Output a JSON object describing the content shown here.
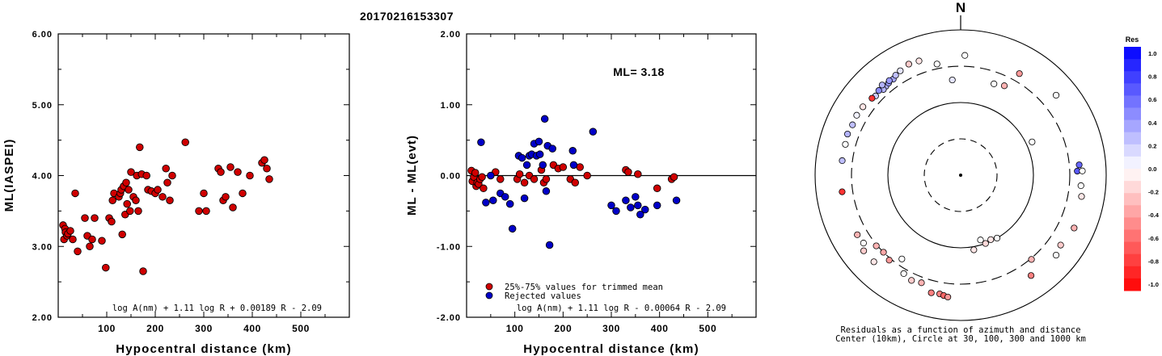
{
  "title": "20170216153307",
  "chart_data": [
    {
      "type": "scatter",
      "ylabel": "ML(IASPEI)",
      "xlabel": "Hypocentral distance (km)",
      "xlim": [
        0,
        600
      ],
      "ylim": [
        2.0,
        6.0
      ],
      "x_ticks": [
        "100",
        "200",
        "300",
        "400",
        "500"
      ],
      "y_ticks": [
        "2.00",
        "3.00",
        "4.00",
        "5.00",
        "6.00"
      ],
      "formula": "log A(nm) + 1.11 log R + 0.00189 R - 2.09",
      "series": [
        {
          "color": "#d00000",
          "points": [
            [
              10,
              3.3
            ],
            [
              12,
              3.1
            ],
            [
              14,
              3.25
            ],
            [
              15,
              3.2
            ],
            [
              18,
              3.15
            ],
            [
              20,
              3.18
            ],
            [
              25,
              3.22
            ],
            [
              30,
              3.1
            ],
            [
              35,
              3.75
            ],
            [
              40,
              2.93
            ],
            [
              55,
              3.4
            ],
            [
              60,
              3.15
            ],
            [
              65,
              3.0
            ],
            [
              70,
              3.1
            ],
            [
              75,
              3.4
            ],
            [
              90,
              3.08
            ],
            [
              98,
              2.7
            ],
            [
              105,
              3.4
            ],
            [
              110,
              3.35
            ],
            [
              112,
              3.65
            ],
            [
              115,
              3.75
            ],
            [
              125,
              3.7
            ],
            [
              128,
              3.75
            ],
            [
              130,
              3.8
            ],
            [
              132,
              3.17
            ],
            [
              135,
              3.85
            ],
            [
              138,
              3.45
            ],
            [
              140,
              3.9
            ],
            [
              142,
              3.6
            ],
            [
              145,
              3.8
            ],
            [
              148,
              3.5
            ],
            [
              150,
              4.05
            ],
            [
              155,
              3.7
            ],
            [
              160,
              3.65
            ],
            [
              162,
              4.0
            ],
            [
              165,
              3.5
            ],
            [
              168,
              4.4
            ],
            [
              172,
              4.02
            ],
            [
              175,
              2.65
            ],
            [
              182,
              4.0
            ],
            [
              185,
              3.8
            ],
            [
              192,
              3.78
            ],
            [
              200,
              3.75
            ],
            [
              205,
              3.8
            ],
            [
              215,
              3.7
            ],
            [
              222,
              4.1
            ],
            [
              225,
              3.9
            ],
            [
              230,
              3.65
            ],
            [
              235,
              4.0
            ],
            [
              262,
              4.47
            ],
            [
              290,
              3.5
            ],
            [
              300,
              3.75
            ],
            [
              305,
              3.5
            ],
            [
              330,
              4.1
            ],
            [
              335,
              4.05
            ],
            [
              340,
              3.65
            ],
            [
              345,
              3.7
            ],
            [
              355,
              4.12
            ],
            [
              360,
              3.55
            ],
            [
              370,
              4.05
            ],
            [
              380,
              3.75
            ],
            [
              395,
              4.0
            ],
            [
              420,
              4.18
            ],
            [
              425,
              4.22
            ],
            [
              430,
              4.1
            ],
            [
              435,
              3.95
            ]
          ]
        }
      ]
    },
    {
      "type": "scatter",
      "ylabel": "ML - ML(evt)",
      "xlabel": "Hypocentral distance (km)",
      "xlim": [
        0,
        600
      ],
      "ylim": [
        -2.0,
        2.0
      ],
      "x_ticks": [
        "100",
        "200",
        "300",
        "400",
        "500"
      ],
      "y_ticks": [
        "-2.00",
        "-1.00",
        "0.00",
        "1.00",
        "2.00"
      ],
      "annotation": "ML= 3.18",
      "reference_line": 0.0,
      "formula": "log A(nm) + 1.11 log R - 0.00064 R - 2.09",
      "series": [
        {
          "name": "25%-75% values for trimmed mean",
          "color": "#d00000",
          "points": [
            [
              10,
              0.07
            ],
            [
              12,
              -0.08
            ],
            [
              15,
              -0.02
            ],
            [
              18,
              0.04
            ],
            [
              20,
              -0.15
            ],
            [
              22,
              -0.1
            ],
            [
              25,
              -0.12
            ],
            [
              28,
              -0.05
            ],
            [
              32,
              -0.02
            ],
            [
              35,
              -0.18
            ],
            [
              60,
              0.05
            ],
            [
              70,
              -0.05
            ],
            [
              105,
              -0.05
            ],
            [
              110,
              0.02
            ],
            [
              120,
              -0.1
            ],
            [
              130,
              0.0
            ],
            [
              140,
              -0.05
            ],
            [
              155,
              0.08
            ],
            [
              160,
              -0.1
            ],
            [
              165,
              -0.05
            ],
            [
              180,
              0.15
            ],
            [
              190,
              0.1
            ],
            [
              200,
              0.12
            ],
            [
              215,
              -0.05
            ],
            [
              225,
              -0.1
            ],
            [
              235,
              0.12
            ],
            [
              250,
              0.0
            ],
            [
              330,
              0.08
            ],
            [
              335,
              0.05
            ],
            [
              355,
              0.02
            ],
            [
              395,
              -0.18
            ],
            [
              425,
              -0.05
            ],
            [
              430,
              -0.02
            ]
          ]
        },
        {
          "name": "Rejected values",
          "color": "#0000c8",
          "points": [
            [
              30,
              0.47
            ],
            [
              40,
              -0.38
            ],
            [
              50,
              0.0
            ],
            [
              55,
              -0.35
            ],
            [
              70,
              -0.25
            ],
            [
              80,
              -0.3
            ],
            [
              90,
              -0.4
            ],
            [
              95,
              -0.75
            ],
            [
              108,
              0.28
            ],
            [
              115,
              0.25
            ],
            [
              120,
              -0.32
            ],
            [
              125,
              0.15
            ],
            [
              130,
              0.28
            ],
            [
              135,
              0.3
            ],
            [
              140,
              0.45
            ],
            [
              145,
              0.28
            ],
            [
              150,
              0.48
            ],
            [
              152,
              0.3
            ],
            [
              158,
              0.15
            ],
            [
              162,
              0.8
            ],
            [
              165,
              -0.22
            ],
            [
              168,
              0.42
            ],
            [
              172,
              -0.98
            ],
            [
              178,
              0.38
            ],
            [
              220,
              0.35
            ],
            [
              222,
              0.15
            ],
            [
              262,
              0.62
            ],
            [
              300,
              -0.42
            ],
            [
              310,
              -0.5
            ],
            [
              330,
              -0.35
            ],
            [
              340,
              -0.45
            ],
            [
              350,
              -0.3
            ],
            [
              355,
              -0.42
            ],
            [
              360,
              -0.55
            ],
            [
              370,
              -0.48
            ],
            [
              395,
              -0.42
            ],
            [
              435,
              -0.35
            ]
          ]
        }
      ]
    }
  ],
  "polar": {
    "north_label": "N",
    "caption_line1": "Residuals as a function of azimuth and distance",
    "caption_line2": "Center (10km), Circle at 30, 100, 300 and 1000 km",
    "colorbar_title": "Res",
    "colorbar_ticks": [
      "1.0",
      "0.8",
      "0.6",
      "0.4",
      "0.2",
      "0.0",
      "-0.2",
      "-0.4",
      "-0.6",
      "-0.8",
      "-1.0"
    ],
    "colors": {
      "positive": "#0000ff",
      "zero": "#ffffff",
      "negative": "#ff0000"
    },
    "stations": [
      {
        "az": 2,
        "dist": 430,
        "res": 0.0
      },
      {
        "az": 320,
        "dist": 380,
        "res": 0.3
      },
      {
        "az": 322,
        "dist": 390,
        "res": 0.4
      },
      {
        "az": 325,
        "dist": 395,
        "res": 0.35
      },
      {
        "az": 318,
        "dist": 370,
        "res": 0.3
      },
      {
        "az": 316,
        "dist": 400,
        "res": 0.45
      },
      {
        "az": 323,
        "dist": 410,
        "res": 0.4
      },
      {
        "az": 327,
        "dist": 420,
        "res": 0.25
      },
      {
        "az": 319,
        "dist": 425,
        "res": 0.3
      },
      {
        "az": 313,
        "dist": 380,
        "res": 0.2
      },
      {
        "az": 311,
        "dist": 395,
        "res": -0.8
      },
      {
        "az": 330,
        "dist": 440,
        "res": 0.1
      },
      {
        "az": 305,
        "dist": 420,
        "res": -0.1
      },
      {
        "az": 300,
        "dist": 430,
        "res": 0.05
      },
      {
        "az": 295,
        "dist": 420,
        "res": 0.25
      },
      {
        "az": 290,
        "dist": 435,
        "res": 0.3
      },
      {
        "az": 285,
        "dist": 420,
        "res": 0.0
      },
      {
        "az": 277,
        "dist": 420,
        "res": 0.25
      },
      {
        "az": 262,
        "dist": 425,
        "res": -0.8
      },
      {
        "az": 335,
        "dist": 470,
        "res": -0.2
      },
      {
        "az": 340,
        "dist": 455,
        "res": -0.1
      },
      {
        "az": 348,
        "dist": 350,
        "res": 0.0
      },
      {
        "az": 355,
        "dist": 200,
        "res": 0.1
      },
      {
        "az": 20,
        "dist": 210,
        "res": 0.0
      },
      {
        "az": 26,
        "dist": 225,
        "res": -0.3
      },
      {
        "az": 30,
        "dist": 395,
        "res": -0.4
      },
      {
        "az": 50,
        "dist": 500,
        "res": 0.0
      },
      {
        "az": 85,
        "dist": 415,
        "res": 0.6
      },
      {
        "az": 88,
        "dist": 385,
        "res": 0.65
      },
      {
        "az": 88,
        "dist": 455,
        "res": 0.0
      },
      {
        "az": 95,
        "dist": 440,
        "res": 0.0
      },
      {
        "az": 100,
        "dist": 470,
        "res": -0.1
      },
      {
        "az": 65,
        "dist": 120,
        "res": 0.0
      },
      {
        "az": 115,
        "dist": 510,
        "res": -0.3
      },
      {
        "az": 125,
        "dist": 460,
        "res": -0.2
      },
      {
        "az": 130,
        "dist": 500,
        "res": 0.0
      },
      {
        "az": 140,
        "dist": 310,
        "res": -0.3
      },
      {
        "az": 150,
        "dist": 100,
        "res": 0.0
      },
      {
        "az": 155,
        "dist": 95,
        "res": -0.1
      },
      {
        "az": 160,
        "dist": 100,
        "res": -0.15
      },
      {
        "az": 163,
        "dist": 85,
        "res": 0.0
      },
      {
        "az": 170,
        "dist": 110,
        "res": -0.1
      },
      {
        "az": 145,
        "dist": 470,
        "res": -0.5
      },
      {
        "az": 190,
        "dist": 440,
        "res": -0.5
      },
      {
        "az": 188,
        "dist": 455,
        "res": -0.6
      },
      {
        "az": 186,
        "dist": 470,
        "res": -0.4
      },
      {
        "az": 194,
        "dist": 450,
        "res": -0.5
      },
      {
        "az": 200,
        "dist": 360,
        "res": -0.3
      },
      {
        "az": 205,
        "dist": 380,
        "res": -0.2
      },
      {
        "az": 210,
        "dist": 350,
        "res": 0.0
      },
      {
        "az": 215,
        "dist": 245,
        "res": 0.0
      },
      {
        "az": 220,
        "dist": 320,
        "res": -0.4
      },
      {
        "az": 225,
        "dist": 300,
        "res": -0.35
      },
      {
        "az": 230,
        "dist": 310,
        "res": -0.3
      },
      {
        "az": 225,
        "dist": 470,
        "res": -0.1
      },
      {
        "az": 232,
        "dist": 475,
        "res": -0.2
      },
      {
        "az": 235,
        "dist": 410,
        "res": 0.0
      },
      {
        "az": 240,
        "dist": 420,
        "res": -0.3
      }
    ]
  }
}
